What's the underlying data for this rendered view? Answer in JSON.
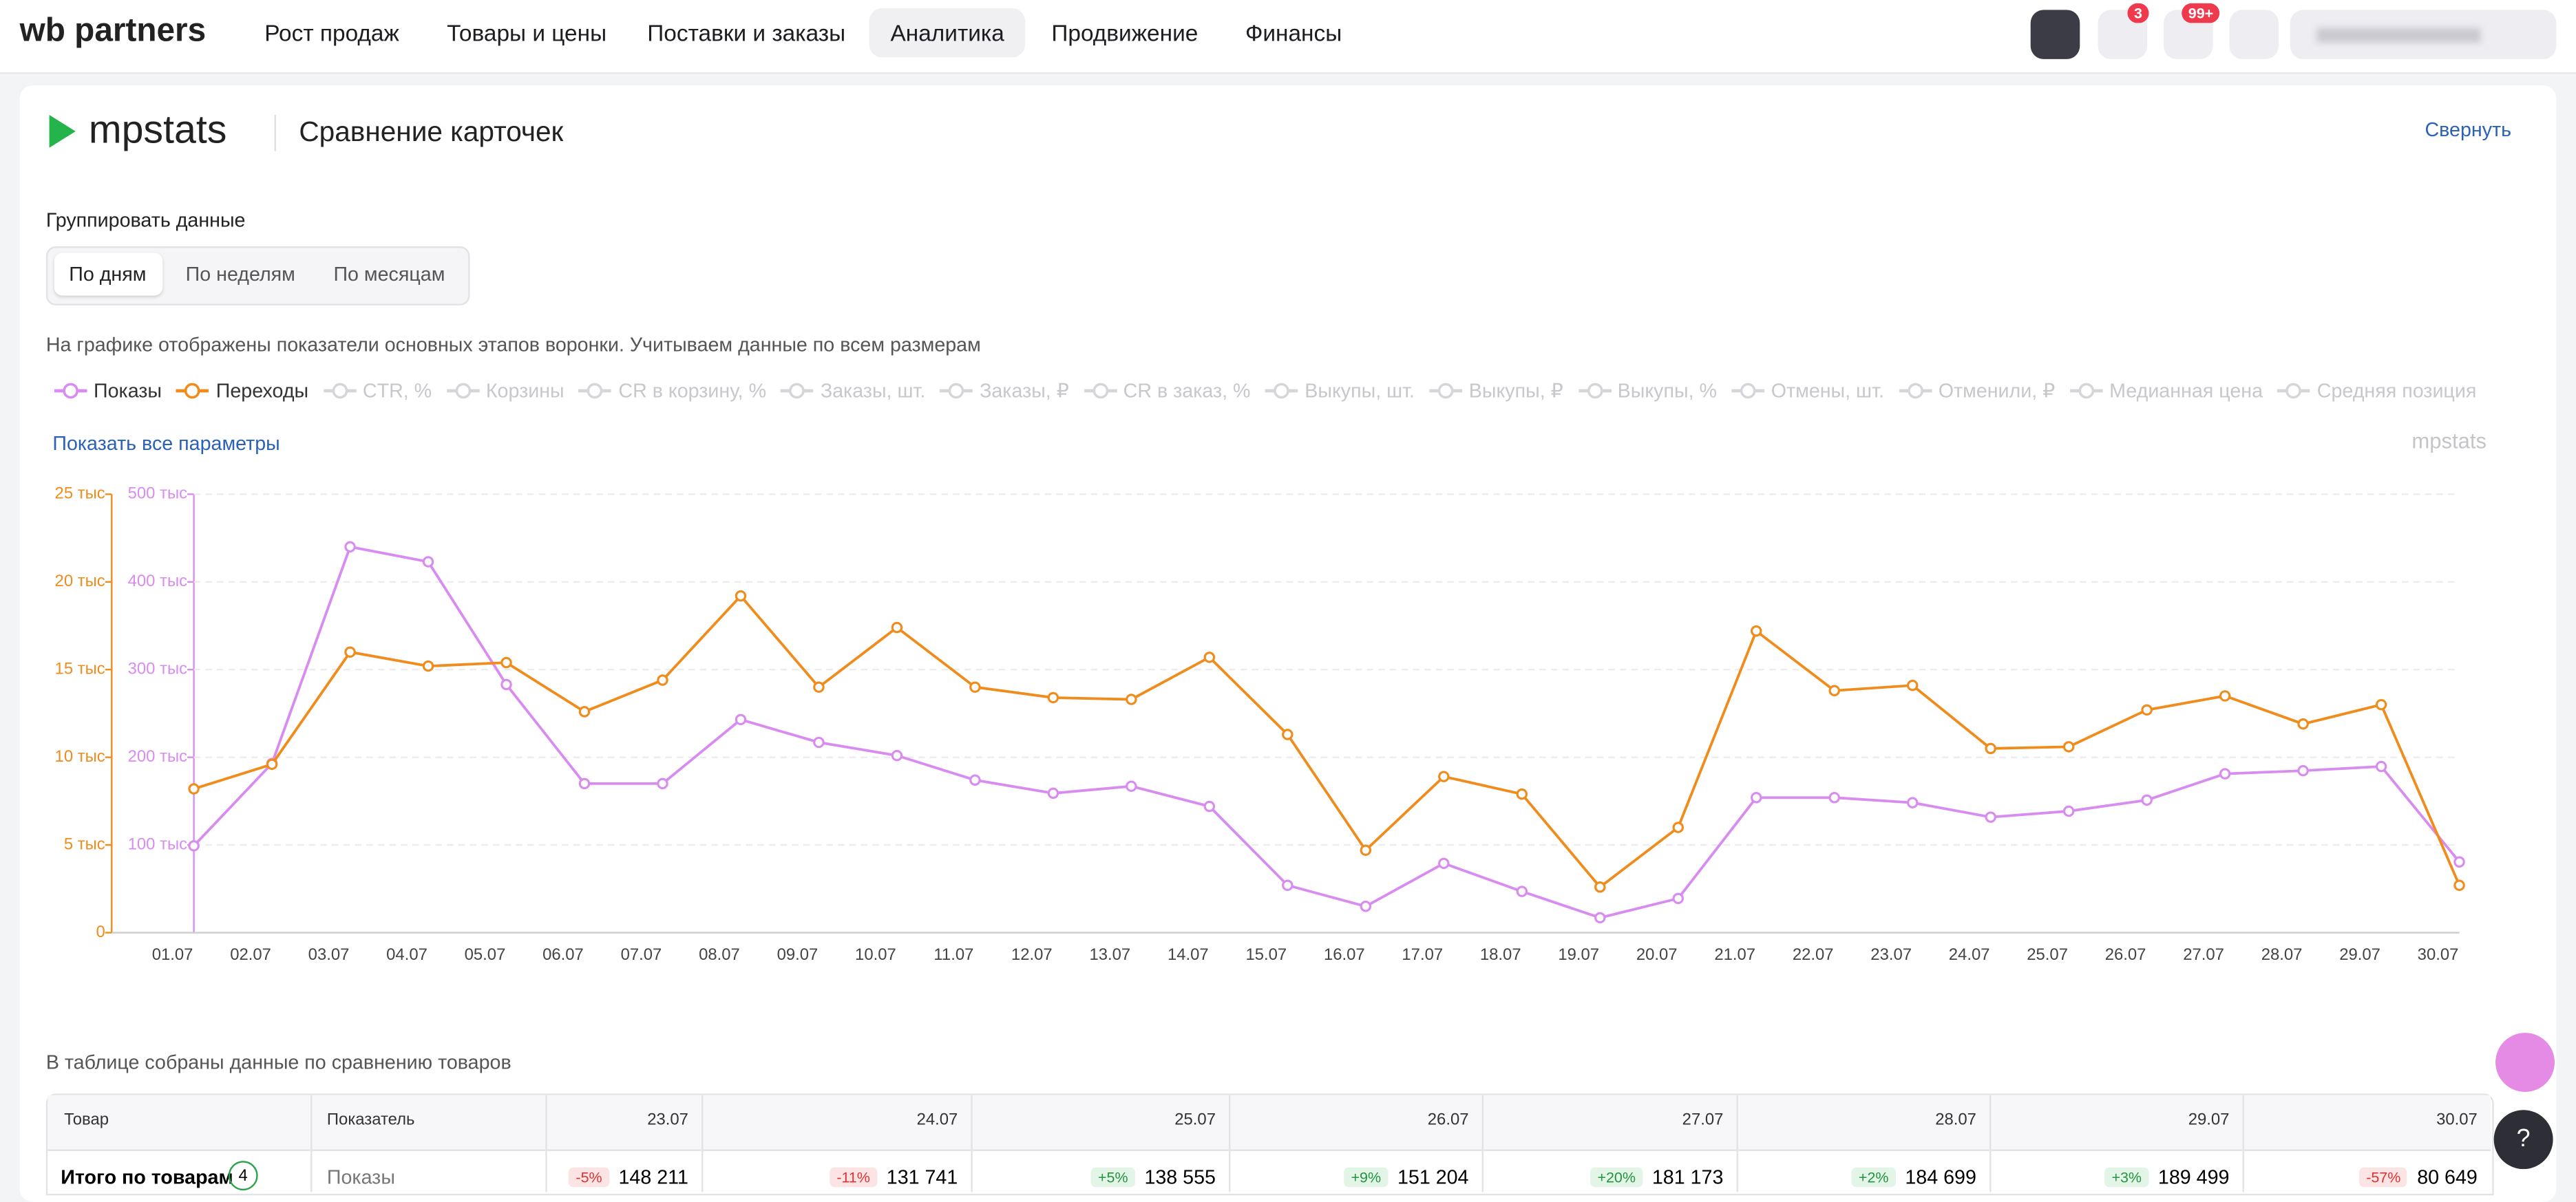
{
  "header": {
    "logo": "wb partners",
    "nav": [
      "Рост продаж",
      "Товары и цены",
      "Поставки и заказы",
      "Аналитика",
      "Продвижение",
      "Финансы"
    ],
    "active_nav": "Аналитика",
    "badges": [
      "3",
      "99+"
    ]
  },
  "panel": {
    "brand": "mpstats",
    "title": "Сравнение карточек",
    "collapse": "Свернуть",
    "group_label": "Группировать данные",
    "group_options": [
      "По дням",
      "По неделям",
      "По месяцам"
    ],
    "selected_group": "По дням",
    "note": "На графике отображены показатели основных этапов воронки. Учитываем данные по всем размерам",
    "inactive_legend": [
      "CTR, %",
      "Корзины",
      "CR в корзину, %",
      "Заказы, шт.",
      "Заказы, ₽",
      "CR в заказ, %",
      "Выкупы, шт.",
      "Выкупы, ₽",
      "Выкупы, %",
      "Отмены, шт.",
      "Отменили, ₽",
      "Медианная цена",
      "Средняя позиция"
    ],
    "show_all": "Показать все параметры",
    "watermark": "mpstats"
  },
  "chart_data": {
    "type": "line",
    "x": [
      "01.07",
      "02.07",
      "03.07",
      "04.07",
      "05.07",
      "06.07",
      "07.07",
      "08.07",
      "09.07",
      "10.07",
      "11.07",
      "12.07",
      "13.07",
      "14.07",
      "15.07",
      "16.07",
      "17.07",
      "18.07",
      "19.07",
      "20.07",
      "21.07",
      "22.07",
      "23.07",
      "24.07",
      "25.07",
      "26.07",
      "27.07",
      "28.07",
      "29.07",
      "30.07"
    ],
    "series": [
      {
        "name": "Показы",
        "color": "#d98cf0",
        "axis": "y2",
        "values": [
          99000,
          193000,
          440000,
          423000,
          283000,
          170000,
          170000,
          243000,
          217000,
          202000,
          174000,
          159000,
          167000,
          144000,
          54000,
          30000,
          79000,
          47000,
          17000,
          39000,
          154000,
          154000,
          148211,
          131741,
          138555,
          151204,
          181173,
          184699,
          189499,
          80649
        ]
      },
      {
        "name": "Переходы",
        "color": "#ef8c1c",
        "values": [
          8200,
          9600,
          16000,
          15200,
          15400,
          12600,
          14400,
          19200,
          14000,
          17400,
          14000,
          13400,
          13300,
          15700,
          11300,
          4700,
          8900,
          7900,
          2600,
          6000,
          17200,
          13800,
          14100,
          10500,
          10600,
          12700,
          13500,
          11900,
          13000,
          2700
        ]
      }
    ],
    "ylim": [
      0,
      25000
    ],
    "yticks": [
      0,
      {
        "value": 5000,
        "label": "5 тыс"
      },
      {
        "value": 10000,
        "label": "10 тыс"
      },
      {
        "value": 15000,
        "label": "15 тыс"
      },
      {
        "value": 20000,
        "label": "20 тыс"
      },
      {
        "value": 25000,
        "label": "25 тыс"
      }
    ],
    "y2lim": [
      0,
      500000
    ],
    "y2ticks": [
      {
        "value": 100000,
        "label": "100 тыс"
      },
      {
        "value": 200000,
        "label": "200 тыс"
      },
      {
        "value": 300000,
        "label": "300 тыс"
      },
      {
        "value": 400000,
        "label": "400 тыс"
      },
      {
        "value": 500000,
        "label": "500 тыс"
      }
    ],
    "grid": true
  },
  "table": {
    "caption": "В таблице собраны данные по сравнению товаров",
    "columns": [
      "Товар",
      "Показатель",
      "23.07",
      "24.07",
      "25.07",
      "26.07",
      "27.07",
      "28.07",
      "29.07",
      "30.07"
    ],
    "row": {
      "product": "Итого по товарам",
      "count": "4",
      "metric": "Показы",
      "changes": [
        "-5%",
        "-11%",
        "+5%",
        "+9%",
        "+20%",
        "+2%",
        "+3%",
        "-57%"
      ],
      "values": [
        "148 211",
        "131 741",
        "138 555",
        "151 204",
        "181 173",
        "184 699",
        "189 499",
        "80 649"
      ]
    }
  }
}
